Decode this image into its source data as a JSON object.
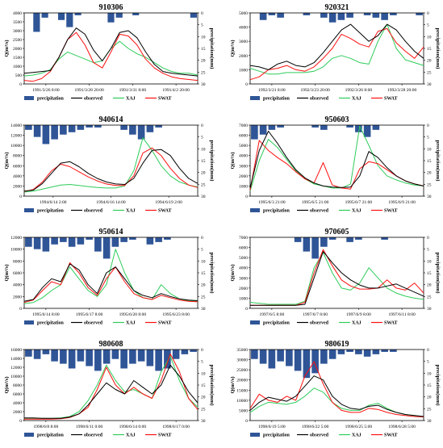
{
  "figure": {
    "colors": {
      "precipitation": "#2f5597",
      "observed": "#000000",
      "xaj": "#2ecc5a",
      "swat": "#ff1010"
    },
    "legend": [
      "precipitation",
      "observed",
      "XAJ",
      "SWAT"
    ],
    "ylabel": "Q(m³/s)",
    "y2label": "precipitation(mm)"
  },
  "chart_data": [
    {
      "type": "line",
      "title": "910306",
      "xticks": [
        "1991/3/26 8:00",
        "1991/3/28 20:00",
        "1991/3/31 8:00",
        "1991/4/2 20:00"
      ],
      "yticks": [
        "0",
        "500",
        "1000",
        "1500",
        "2000",
        "2500",
        "3000",
        "3500",
        "4000"
      ],
      "ylim": [
        0,
        4000
      ],
      "y2ticks": [
        "0",
        "5",
        "10",
        "15",
        "20",
        "25",
        "30"
      ],
      "y2lim": [
        0,
        30
      ],
      "series": [
        {
          "name": "observed",
          "values": [
            600,
            650,
            700,
            750,
            1500,
            2500,
            3150,
            2800,
            1900,
            1300,
            2000,
            2900,
            3000,
            2600,
            1800,
            1100,
            700,
            600,
            550,
            500,
            450
          ]
        },
        {
          "name": "XAJ",
          "values": [
            450,
            500,
            600,
            800,
            1400,
            1800,
            1600,
            1400,
            1200,
            1300,
            2000,
            2400,
            2000,
            1700,
            1500,
            1200,
            900,
            700,
            600,
            600,
            500
          ]
        },
        {
          "name": "SWAT",
          "values": [
            200,
            150,
            300,
            700,
            1500,
            2500,
            2900,
            2200,
            1200,
            900,
            1800,
            2800,
            2700,
            2200,
            1400,
            900,
            600,
            400,
            300,
            250,
            200
          ]
        }
      ],
      "precipitation": [
        0,
        8,
        2,
        0,
        3,
        6,
        1,
        0,
        0,
        0,
        4,
        2,
        0,
        1,
        0,
        0,
        0,
        0,
        0,
        0,
        2
      ]
    },
    {
      "type": "line",
      "title": "920321",
      "xticks": [
        "1992/3/21 8:00",
        "1992/3/23 20:00",
        "1992/3/26 8:00",
        "1992/3/28 20:00"
      ],
      "yticks": [
        "0",
        "1000",
        "2000",
        "3000",
        "4000",
        "5000"
      ],
      "ylim": [
        0,
        5000
      ],
      "y2ticks": [
        "0",
        "5",
        "10",
        "15",
        "20",
        "25",
        "30"
      ],
      "y2lim": [
        0,
        30
      ],
      "series": [
        {
          "name": "observed",
          "values": [
            1300,
            1200,
            1000,
            1400,
            1600,
            1300,
            1200,
            1500,
            2200,
            3000,
            3800,
            4200,
            3600,
            3000,
            3400,
            4200,
            3800,
            3000,
            2300,
            1800
          ]
        },
        {
          "name": "XAJ",
          "values": [
            1100,
            900,
            700,
            700,
            800,
            800,
            800,
            900,
            1200,
            1800,
            2000,
            1800,
            1500,
            1400,
            3000,
            4200,
            2500,
            1700,
            1500,
            1300
          ]
        },
        {
          "name": "SWAT",
          "values": [
            300,
            500,
            1000,
            1100,
            1300,
            1000,
            900,
            1200,
            1800,
            2500,
            3500,
            3200,
            2800,
            2600,
            3700,
            3900,
            2900,
            2300,
            1800,
            2600
          ]
        }
      ],
      "precipitation": [
        0,
        3,
        1,
        2,
        0,
        0,
        1,
        0,
        2,
        4,
        3,
        2,
        0,
        1,
        2,
        3,
        1,
        0,
        0,
        1
      ]
    },
    {
      "type": "line",
      "title": "940614",
      "xticks": [
        "1994/6/14 2:00",
        "1994/6/16 14:00",
        "1994/6/19 2:00"
      ],
      "yticks": [
        "0",
        "2000",
        "4000",
        "6000",
        "8000",
        "10000",
        "12000",
        "14000"
      ],
      "ylim": [
        0,
        14000
      ],
      "y2ticks": [
        "0",
        "5",
        "10",
        "15",
        "20",
        "25",
        "30"
      ],
      "y2lim": [
        0,
        30
      ],
      "series": [
        {
          "name": "observed",
          "values": [
            1000,
            1200,
            2500,
            4500,
            6500,
            6800,
            5800,
            4500,
            3500,
            2800,
            2400,
            2300,
            3500,
            6500,
            9000,
            9200,
            8000,
            5500,
            3500,
            2500
          ]
        },
        {
          "name": "XAJ",
          "values": [
            800,
            1000,
            1400,
            1800,
            2200,
            2300,
            2100,
            1900,
            1700,
            1600,
            1600,
            2000,
            5000,
            11500,
            9000,
            6000,
            4000,
            2800,
            2200,
            1800
          ]
        },
        {
          "name": "SWAT",
          "values": [
            900,
            1300,
            2800,
            5000,
            6300,
            5800,
            4800,
            3800,
            3000,
            2400,
            2100,
            2100,
            4000,
            8500,
            9500,
            8000,
            5500,
            3500,
            2200,
            1700
          ]
        }
      ],
      "precipitation": [
        2,
        5,
        8,
        6,
        4,
        3,
        2,
        1,
        1,
        0,
        0,
        2,
        4,
        6,
        3,
        1,
        0,
        0,
        0,
        0
      ]
    },
    {
      "type": "line",
      "title": "950603",
      "xticks": [
        "1995/6/3 21:00",
        "1995/6/5 21:00",
        "1995/6/7 21:00",
        "1995/6/9 21:00"
      ],
      "yticks": [
        "0",
        "1000",
        "2000",
        "3000",
        "4000",
        "5000",
        "6000",
        "7000"
      ],
      "ylim": [
        0,
        7000
      ],
      "y2ticks": [
        "0",
        "5",
        "10",
        "15",
        "20",
        "25",
        "30"
      ],
      "y2lim": [
        0,
        30
      ],
      "series": [
        {
          "name": "observed",
          "values": [
            800,
            4500,
            6400,
            5200,
            3800,
            2600,
            1800,
            1300,
            1000,
            900,
            850,
            900,
            2000,
            4400,
            3800,
            2800,
            2000,
            1500,
            1200,
            1000
          ]
        },
        {
          "name": "XAJ",
          "values": [
            500,
            3500,
            5600,
            4800,
            3600,
            2500,
            1700,
            1200,
            1000,
            800,
            800,
            1200,
            6900,
            5000,
            3000,
            2000,
            1600,
            1300,
            1100,
            1000
          ]
        },
        {
          "name": "SWAT",
          "values": [
            600,
            5500,
            4500,
            3800,
            3200,
            2400,
            1700,
            1300,
            3300,
            1100,
            800,
            700,
            2700,
            3400,
            3200,
            2600,
            2000,
            1500,
            1200,
            1000
          ]
        }
      ],
      "precipitation": [
        6,
        4,
        2,
        1,
        0,
        0,
        0,
        1,
        2,
        0,
        0,
        1,
        3,
        5,
        2,
        0,
        0,
        0,
        0,
        0
      ]
    },
    {
      "type": "line",
      "title": "950614",
      "xticks": [
        "1995/6/14 8:00",
        "1995/6/17 8:00",
        "1995/6/20 8:00",
        "1995/6/23 8:00"
      ],
      "yticks": [
        "0",
        "2000",
        "4000",
        "6000",
        "8000",
        "10000",
        "12000"
      ],
      "ylim": [
        0,
        12000
      ],
      "y2ticks": [
        "0",
        "5",
        "10",
        "15",
        "20",
        "25",
        "30"
      ],
      "y2lim": [
        0,
        30
      ],
      "series": [
        {
          "name": "observed",
          "values": [
            1200,
            1500,
            3500,
            5000,
            4500,
            7500,
            6500,
            4000,
            2500,
            6000,
            7000,
            5000,
            3000,
            2200,
            1800,
            2500,
            2000,
            1600,
            1400,
            1300
          ]
        },
        {
          "name": "XAJ",
          "values": [
            800,
            1000,
            1800,
            3000,
            4000,
            7000,
            5000,
            3000,
            2000,
            4000,
            10000,
            6000,
            3000,
            1800,
            1500,
            4000,
            2500,
            1600,
            1300,
            1200
          ]
        },
        {
          "name": "SWAT",
          "values": [
            1000,
            1400,
            3000,
            4500,
            4000,
            7700,
            6000,
            3500,
            2200,
            5000,
            7000,
            4500,
            2500,
            1800,
            1500,
            2200,
            1800,
            1400,
            1200,
            1100
          ]
        }
      ],
      "precipitation": [
        4,
        5,
        6,
        3,
        2,
        4,
        3,
        1,
        6,
        9,
        4,
        2,
        1,
        0,
        3,
        2,
        1,
        0,
        0,
        0
      ]
    },
    {
      "type": "line",
      "title": "970605",
      "xticks": [
        "1997/6/5 8:00",
        "1997/6/7 8:00",
        "1997/6/9 8:00",
        "1997/6/11 8:00"
      ],
      "yticks": [
        "0",
        "1000",
        "2000",
        "3000",
        "4000",
        "5000",
        "6000",
        "7000"
      ],
      "ylim": [
        0,
        7000
      ],
      "y2ticks": [
        "0",
        "5",
        "10",
        "15",
        "20",
        "25",
        "30"
      ],
      "y2lim": [
        0,
        30
      ],
      "series": [
        {
          "name": "observed",
          "values": [
            300,
            300,
            300,
            300,
            300,
            300,
            400,
            3000,
            5600,
            4500,
            3500,
            2800,
            2300,
            2000,
            2000,
            2200,
            2400,
            2000,
            1600,
            1200
          ]
        },
        {
          "name": "XAJ",
          "values": [
            600,
            500,
            400,
            400,
            400,
            400,
            700,
            4000,
            5500,
            3500,
            2000,
            1800,
            2500,
            4000,
            3000,
            2000,
            1500,
            1200,
            1000,
            900
          ]
        },
        {
          "name": "SWAT",
          "values": [
            300,
            300,
            300,
            300,
            300,
            300,
            600,
            3500,
            5800,
            4200,
            2800,
            2200,
            1900,
            1900,
            2000,
            2800,
            2000,
            1800,
            2500,
            1500
          ]
        }
      ],
      "precipitation": [
        0,
        0,
        0,
        0,
        0,
        2,
        6,
        9,
        4,
        1,
        0,
        2,
        1,
        0,
        0,
        1,
        0,
        0,
        0,
        0
      ]
    },
    {
      "type": "line",
      "title": "980608",
      "xticks": [
        "1998/6/8 8:00",
        "1998/6/11 0:00",
        "1998/6/14 0:00",
        "1998/6/17 0:00"
      ],
      "yticks": [
        "0",
        "2000",
        "4000",
        "6000",
        "8000",
        "10000",
        "12000",
        "14000",
        "16000"
      ],
      "ylim": [
        0,
        16000
      ],
      "y2ticks": [
        "0",
        "5",
        "10",
        "15",
        "20",
        "25",
        "30"
      ],
      "y2lim": [
        0,
        30
      ],
      "series": [
        {
          "name": "observed",
          "values": [
            600,
            600,
            500,
            500,
            500,
            800,
            1500,
            3500,
            6000,
            8500,
            7000,
            6000,
            9000,
            7500,
            6000,
            8000,
            12500,
            10000,
            6500,
            4000
          ]
        },
        {
          "name": "XAJ",
          "values": [
            500,
            500,
            500,
            500,
            600,
            900,
            2000,
            4500,
            8000,
            12500,
            9000,
            6500,
            7000,
            6000,
            5000,
            11000,
            14500,
            9000,
            5000,
            3000
          ]
        },
        {
          "name": "SWAT",
          "values": [
            300,
            300,
            300,
            300,
            400,
            700,
            1500,
            3000,
            7000,
            12000,
            8000,
            6000,
            7500,
            6000,
            5000,
            9000,
            15000,
            11000,
            5000,
            2500
          ]
        }
      ],
      "precipitation": [
        3,
        4,
        2,
        5,
        6,
        8,
        5,
        7,
        9,
        6,
        4,
        8,
        6,
        5,
        7,
        9,
        8,
        4,
        2,
        1
      ]
    },
    {
      "type": "line",
      "title": "980619",
      "xticks": [
        "1998/6/19 5:00",
        "1998/6/22 5:00",
        "1998/6/25 5:00",
        "1998/6/28 5:00"
      ],
      "yticks": [
        "0",
        "5000",
        "10000",
        "15000",
        "20000",
        "25000",
        "30000",
        "35000"
      ],
      "ylim": [
        0,
        35000
      ],
      "y2ticks": [
        "0",
        "5",
        "10",
        "15",
        "20",
        "25",
        "30"
      ],
      "y2lim": [
        0,
        30
      ],
      "series": [
        {
          "name": "observed",
          "values": [
            5000,
            9000,
            11500,
            10500,
            9500,
            12000,
            17000,
            22000,
            20000,
            12000,
            8000,
            6000,
            5500,
            7000,
            7500,
            5500,
            4000,
            3000,
            2500,
            2000
          ]
        },
        {
          "name": "XAJ",
          "values": [
            4000,
            7000,
            9000,
            8500,
            8000,
            9000,
            12000,
            16000,
            14000,
            9000,
            6000,
            5000,
            5000,
            7500,
            8500,
            6000,
            4000,
            3000,
            2500,
            2000
          ]
        },
        {
          "name": "SWAT",
          "values": [
            6000,
            13000,
            10000,
            9000,
            12000,
            10000,
            22000,
            29000,
            18000,
            9000,
            5000,
            4000,
            4000,
            6000,
            5500,
            4000,
            3000,
            2500,
            2000,
            1800
          ]
        }
      ],
      "precipitation": [
        4,
        6,
        8,
        5,
        7,
        9,
        12,
        10,
        6,
        4,
        2,
        1,
        2,
        3,
        2,
        1,
        1,
        0,
        0,
        0
      ]
    }
  ]
}
